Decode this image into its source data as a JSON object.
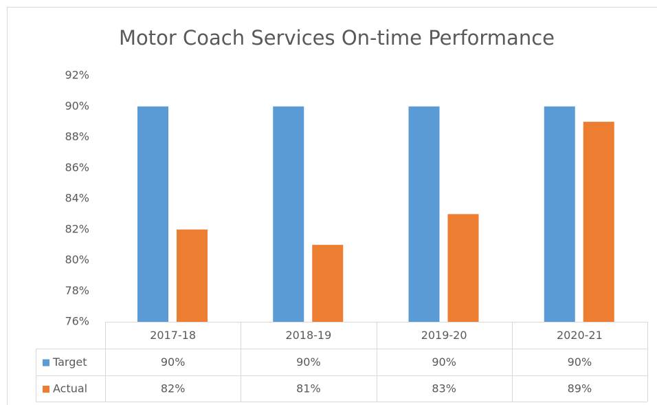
{
  "chart_data": {
    "type": "bar",
    "title": "Motor Coach Services On-time Performance",
    "categories": [
      "2017-18",
      "2018-19",
      "2019-20",
      "2020-21"
    ],
    "series": [
      {
        "name": "Target",
        "color": "#5b9bd5",
        "values": [
          90,
          90,
          90,
          90
        ],
        "value_labels": [
          "90%",
          "90%",
          "90%",
          "90%"
        ]
      },
      {
        "name": "Actual",
        "color": "#ed7d31",
        "values": [
          82,
          81,
          83,
          89
        ],
        "value_labels": [
          "82%",
          "81%",
          "83%",
          "89%"
        ]
      }
    ],
    "ylim": [
      76,
      92
    ],
    "yticks": [
      {
        "value": 76,
        "label": "76%"
      },
      {
        "value": 78,
        "label": "78%"
      },
      {
        "value": 80,
        "label": "80%"
      },
      {
        "value": 82,
        "label": "82%"
      },
      {
        "value": 84,
        "label": "84%"
      },
      {
        "value": 86,
        "label": "86%"
      },
      {
        "value": 88,
        "label": "88%"
      },
      {
        "value": 90,
        "label": "90%"
      },
      {
        "value": 92,
        "label": "92%"
      }
    ],
    "grid": false,
    "data_table": true
  }
}
